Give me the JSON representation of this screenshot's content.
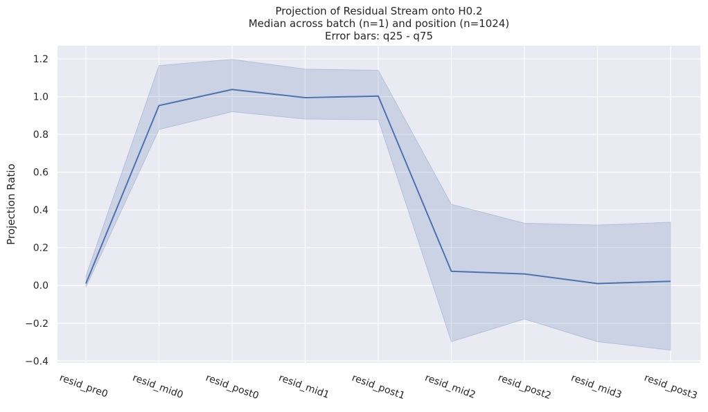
{
  "chart_data": {
    "type": "line",
    "title_lines": [
      "Projection of Residual Stream onto H0.2",
      "Median across batch (n=1) and position (n=1024)",
      "Error bars: q25 - q75"
    ],
    "xlabel": "",
    "ylabel": "Projection Ratio",
    "categories": [
      "resid_pre0",
      "resid_mid0",
      "resid_post0",
      "resid_mid1",
      "resid_post1",
      "resid_mid2",
      "resid_post2",
      "resid_mid3",
      "resid_post3"
    ],
    "median": [
      0.01,
      0.953,
      1.038,
      0.995,
      1.003,
      0.075,
      0.061,
      0.01,
      0.022
    ],
    "q25": [
      -0.01,
      0.826,
      0.92,
      0.881,
      0.878,
      -0.298,
      -0.178,
      -0.298,
      -0.343
    ],
    "q75": [
      0.05,
      1.165,
      1.198,
      1.146,
      1.14,
      0.43,
      0.33,
      0.32,
      0.335
    ],
    "ylim": [
      -0.41,
      1.27
    ],
    "yticks": [
      -0.4,
      -0.2,
      0.0,
      0.2,
      0.4,
      0.6,
      0.8,
      1.0,
      1.2
    ],
    "ytick_labels": [
      "−0.4",
      "−0.2",
      "0.0",
      "0.2",
      "0.4",
      "0.6",
      "0.8",
      "1.0",
      "1.2"
    ],
    "grid": true,
    "colors": {
      "line": "#4c72b0",
      "band": "#4c72b0",
      "background": "#eaeaf2",
      "grid": "#ffffff"
    }
  }
}
